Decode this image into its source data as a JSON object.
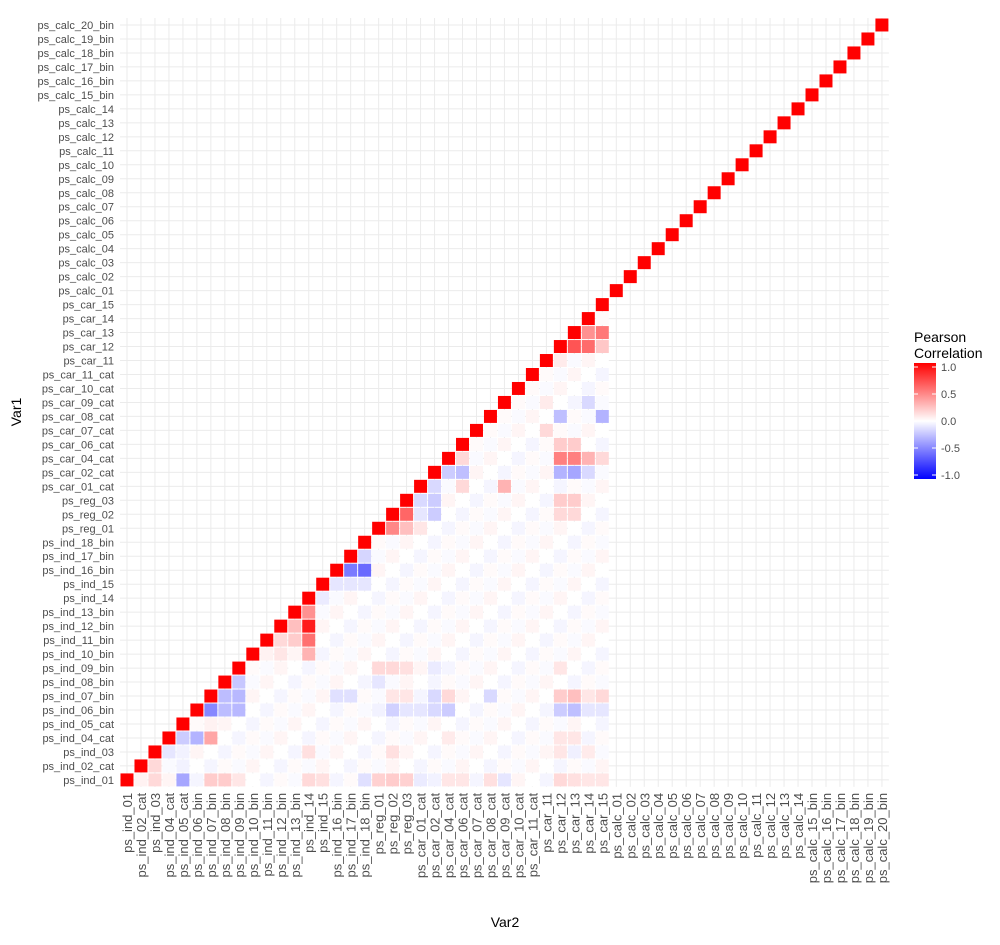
{
  "chart_data": {
    "type": "heatmap",
    "xlabel": "Var2",
    "ylabel": "Var1",
    "variables": [
      "ps_ind_01",
      "ps_ind_02_cat",
      "ps_ind_03",
      "ps_ind_04_cat",
      "ps_ind_05_cat",
      "ps_ind_06_bin",
      "ps_ind_07_bin",
      "ps_ind_08_bin",
      "ps_ind_09_bin",
      "ps_ind_10_bin",
      "ps_ind_11_bin",
      "ps_ind_12_bin",
      "ps_ind_13_bin",
      "ps_ind_14",
      "ps_ind_15",
      "ps_ind_16_bin",
      "ps_ind_17_bin",
      "ps_ind_18_bin",
      "ps_reg_01",
      "ps_reg_02",
      "ps_reg_03",
      "ps_car_01_cat",
      "ps_car_02_cat",
      "ps_car_04_cat",
      "ps_car_06_cat",
      "ps_car_07_cat",
      "ps_car_08_cat",
      "ps_car_09_cat",
      "ps_car_10_cat",
      "ps_car_11_cat",
      "ps_car_11",
      "ps_car_12",
      "ps_car_13",
      "ps_car_14",
      "ps_car_15",
      "ps_calc_01",
      "ps_calc_02",
      "ps_calc_03",
      "ps_calc_04",
      "ps_calc_05",
      "ps_calc_06",
      "ps_calc_07",
      "ps_calc_08",
      "ps_calc_09",
      "ps_calc_10",
      "ps_calc_11",
      "ps_calc_12",
      "ps_calc_13",
      "ps_calc_14",
      "ps_calc_15_bin",
      "ps_calc_16_bin",
      "ps_calc_17_bin",
      "ps_calc_18_bin",
      "ps_calc_19_bin",
      "ps_calc_20_bin"
    ],
    "diagonal": 1.0,
    "correlations": [
      [
        "ps_ind_01",
        "ps_ind_02_cat",
        0.05
      ],
      [
        "ps_ind_01",
        "ps_ind_03",
        0.15
      ],
      [
        "ps_ind_01",
        "ps_ind_05_cat",
        -0.35
      ],
      [
        "ps_ind_01",
        "ps_ind_07_bin",
        0.2
      ],
      [
        "ps_ind_01",
        "ps_ind_08_bin",
        0.2
      ],
      [
        "ps_ind_01",
        "ps_ind_09_bin",
        0.1
      ],
      [
        "ps_ind_01",
        "ps_ind_14",
        0.15
      ],
      [
        "ps_ind_01",
        "ps_ind_15",
        0.12
      ],
      [
        "ps_ind_01",
        "ps_ind_18_bin",
        -0.12
      ],
      [
        "ps_ind_01",
        "ps_reg_01",
        0.18
      ],
      [
        "ps_ind_01",
        "ps_reg_02",
        0.2
      ],
      [
        "ps_ind_01",
        "ps_reg_03",
        0.18
      ],
      [
        "ps_ind_01",
        "ps_car_01_cat",
        -0.08
      ],
      [
        "ps_ind_01",
        "ps_car_02_cat",
        -0.05
      ],
      [
        "ps_ind_01",
        "ps_car_04_cat",
        0.1
      ],
      [
        "ps_ind_01",
        "ps_car_06_cat",
        0.1
      ],
      [
        "ps_ind_01",
        "ps_car_08_cat",
        0.12
      ],
      [
        "ps_ind_01",
        "ps_car_09_cat",
        -0.1
      ],
      [
        "ps_ind_01",
        "ps_car_12",
        0.15
      ],
      [
        "ps_ind_01",
        "ps_car_13",
        0.12
      ],
      [
        "ps_ind_01",
        "ps_car_14",
        0.1
      ],
      [
        "ps_ind_01",
        "ps_car_15",
        0.1
      ],
      [
        "ps_ind_02_cat",
        "ps_ind_03",
        0.15
      ],
      [
        "ps_ind_02_cat",
        "ps_ind_05_cat",
        -0.05
      ],
      [
        "ps_ind_03",
        "ps_ind_04_cat",
        -0.1
      ],
      [
        "ps_ind_03",
        "ps_ind_05_cat",
        -0.05
      ],
      [
        "ps_ind_03",
        "ps_ind_14",
        0.12
      ],
      [
        "ps_ind_03",
        "ps_reg_02",
        0.12
      ],
      [
        "ps_ind_03",
        "ps_car_12",
        0.1
      ],
      [
        "ps_ind_03",
        "ps_car_13",
        -0.06
      ],
      [
        "ps_ind_03",
        "ps_car_14",
        0.08
      ],
      [
        "ps_ind_04_cat",
        "ps_ind_05_cat",
        -0.2
      ],
      [
        "ps_ind_04_cat",
        "ps_ind_06_bin",
        -0.3
      ],
      [
        "ps_ind_04_cat",
        "ps_ind_07_bin",
        0.35
      ],
      [
        "ps_ind_04_cat",
        "ps_car_04_cat",
        0.08
      ],
      [
        "ps_ind_04_cat",
        "ps_car_12",
        0.1
      ],
      [
        "ps_ind_04_cat",
        "ps_car_13",
        0.1
      ],
      [
        "ps_ind_05_cat",
        "ps_ind_07_bin",
        0.05
      ],
      [
        "ps_ind_06_bin",
        "ps_ind_07_bin",
        -0.47
      ],
      [
        "ps_ind_06_bin",
        "ps_ind_08_bin",
        -0.26
      ],
      [
        "ps_ind_06_bin",
        "ps_ind_09_bin",
        -0.28
      ],
      [
        "ps_ind_06_bin",
        "ps_reg_01",
        -0.05
      ],
      [
        "ps_ind_06_bin",
        "ps_reg_02",
        -0.18
      ],
      [
        "ps_ind_06_bin",
        "ps_reg_03",
        -0.1
      ],
      [
        "ps_ind_06_bin",
        "ps_car_01_cat",
        -0.1
      ],
      [
        "ps_ind_06_bin",
        "ps_car_02_cat",
        -0.15
      ],
      [
        "ps_ind_06_bin",
        "ps_car_04_cat",
        -0.2
      ],
      [
        "ps_ind_06_bin",
        "ps_car_12",
        -0.2
      ],
      [
        "ps_ind_06_bin",
        "ps_car_13",
        -0.25
      ],
      [
        "ps_ind_06_bin",
        "ps_car_14",
        -0.1
      ],
      [
        "ps_ind_06_bin",
        "ps_car_15",
        -0.1
      ],
      [
        "ps_ind_07_bin",
        "ps_ind_08_bin",
        -0.26
      ],
      [
        "ps_ind_07_bin",
        "ps_ind_09_bin",
        -0.28
      ],
      [
        "ps_ind_07_bin",
        "ps_ind_16_bin",
        -0.12
      ],
      [
        "ps_ind_07_bin",
        "ps_ind_17_bin",
        -0.12
      ],
      [
        "ps_ind_07_bin",
        "ps_reg_02",
        0.1
      ],
      [
        "ps_ind_07_bin",
        "ps_reg_03",
        0.1
      ],
      [
        "ps_ind_07_bin",
        "ps_car_02_cat",
        -0.15
      ],
      [
        "ps_ind_07_bin",
        "ps_car_04_cat",
        0.15
      ],
      [
        "ps_ind_07_bin",
        "ps_car_08_cat",
        -0.15
      ],
      [
        "ps_ind_07_bin",
        "ps_car_12",
        0.2
      ],
      [
        "ps_ind_07_bin",
        "ps_car_13",
        0.25
      ],
      [
        "ps_ind_07_bin",
        "ps_car_14",
        0.1
      ],
      [
        "ps_ind_07_bin",
        "ps_car_15",
        0.15
      ],
      [
        "ps_ind_08_bin",
        "ps_ind_09_bin",
        -0.22
      ],
      [
        "ps_ind_08_bin",
        "ps_reg_01",
        -0.1
      ],
      [
        "ps_ind_09_bin",
        "ps_reg_01",
        0.15
      ],
      [
        "ps_ind_09_bin",
        "ps_reg_02",
        0.15
      ],
      [
        "ps_ind_09_bin",
        "ps_reg_03",
        0.12
      ],
      [
        "ps_ind_09_bin",
        "ps_car_02_cat",
        -0.08
      ],
      [
        "ps_ind_09_bin",
        "ps_car_12",
        0.1
      ],
      [
        "ps_ind_10_bin",
        "ps_ind_11_bin",
        0.05
      ],
      [
        "ps_ind_10_bin",
        "ps_ind_12_bin",
        0.1
      ],
      [
        "ps_ind_10_bin",
        "ps_ind_14",
        0.3
      ],
      [
        "ps_ind_11_bin",
        "ps_ind_12_bin",
        0.15
      ],
      [
        "ps_ind_11_bin",
        "ps_ind_13_bin",
        0.2
      ],
      [
        "ps_ind_11_bin",
        "ps_ind_14",
        0.56
      ],
      [
        "ps_ind_12_bin",
        "ps_ind_13_bin",
        0.25
      ],
      [
        "ps_ind_12_bin",
        "ps_ind_14",
        0.89
      ],
      [
        "ps_ind_13_bin",
        "ps_ind_14",
        0.43
      ],
      [
        "ps_ind_14",
        "ps_ind_15",
        -0.08
      ],
      [
        "ps_ind_15",
        "ps_ind_16_bin",
        -0.1
      ],
      [
        "ps_ind_15",
        "ps_ind_17_bin",
        -0.1
      ],
      [
        "ps_ind_15",
        "ps_ind_18_bin",
        -0.1
      ],
      [
        "ps_ind_16_bin",
        "ps_ind_17_bin",
        -0.52
      ],
      [
        "ps_ind_16_bin",
        "ps_ind_18_bin",
        -0.59
      ],
      [
        "ps_ind_17_bin",
        "ps_ind_18_bin",
        -0.16
      ],
      [
        "ps_reg_01",
        "ps_reg_02",
        0.47
      ],
      [
        "ps_reg_01",
        "ps_reg_03",
        0.25
      ],
      [
        "ps_reg_01",
        "ps_car_01_cat",
        0.1
      ],
      [
        "ps_reg_02",
        "ps_reg_03",
        0.6
      ],
      [
        "ps_reg_02",
        "ps_car_01_cat",
        -0.1
      ],
      [
        "ps_reg_02",
        "ps_car_02_cat",
        -0.2
      ],
      [
        "ps_reg_02",
        "ps_car_12",
        0.15
      ],
      [
        "ps_reg_02",
        "ps_car_13",
        0.15
      ],
      [
        "ps_reg_03",
        "ps_car_01_cat",
        -0.15
      ],
      [
        "ps_reg_03",
        "ps_car_02_cat",
        -0.2
      ],
      [
        "ps_reg_03",
        "ps_car_12",
        0.2
      ],
      [
        "ps_reg_03",
        "ps_car_13",
        0.2
      ],
      [
        "ps_car_01_cat",
        "ps_car_02_cat",
        -0.15
      ],
      [
        "ps_car_01_cat",
        "ps_car_06_cat",
        0.15
      ],
      [
        "ps_car_01_cat",
        "ps_car_09_cat",
        0.3
      ],
      [
        "ps_car_02_cat",
        "ps_car_04_cat",
        -0.2
      ],
      [
        "ps_car_02_cat",
        "ps_car_06_cat",
        -0.25
      ],
      [
        "ps_car_02_cat",
        "ps_car_12",
        -0.3
      ],
      [
        "ps_car_02_cat",
        "ps_car_13",
        -0.35
      ],
      [
        "ps_car_02_cat",
        "ps_car_14",
        -0.15
      ],
      [
        "ps_car_04_cat",
        "ps_car_06_cat",
        0.15
      ],
      [
        "ps_car_04_cat",
        "ps_car_12",
        0.5
      ],
      [
        "ps_car_04_cat",
        "ps_car_13",
        0.5
      ],
      [
        "ps_car_04_cat",
        "ps_car_14",
        0.3
      ],
      [
        "ps_car_04_cat",
        "ps_car_15",
        0.15
      ],
      [
        "ps_car_06_cat",
        "ps_car_12",
        0.2
      ],
      [
        "ps_car_06_cat",
        "ps_car_13",
        0.2
      ],
      [
        "ps_car_07_cat",
        "ps_car_11",
        0.15
      ],
      [
        "ps_car_08_cat",
        "ps_car_12",
        -0.25
      ],
      [
        "ps_car_08_cat",
        "ps_car_15",
        -0.3
      ],
      [
        "ps_car_09_cat",
        "ps_car_11",
        0.08
      ],
      [
        "ps_car_09_cat",
        "ps_car_14",
        -0.15
      ],
      [
        "ps_car_11",
        "ps_car_12",
        0.08
      ],
      [
        "ps_car_12",
        "ps_car_13",
        0.67
      ],
      [
        "ps_car_12",
        "ps_car_14",
        0.58
      ],
      [
        "ps_car_12",
        "ps_car_15",
        0.22
      ],
      [
        "ps_car_13",
        "ps_car_14",
        0.43
      ],
      [
        "ps_car_13",
        "ps_car_15",
        0.53
      ]
    ],
    "color_scale": {
      "low": "#0000ff",
      "mid": "#ffffff",
      "high": "#ff0000",
      "limits": [
        -1,
        1
      ]
    },
    "legend": {
      "title_lines": [
        "Pearson",
        "Correlation"
      ],
      "breaks": [
        1.0,
        0.5,
        0.0,
        -0.5,
        -1.0
      ],
      "labels": [
        "1.0",
        "0.5",
        "0.0",
        "-0.5",
        "-1.0"
      ],
      "position": "right"
    },
    "grid": true,
    "layout": "upper-triangle"
  }
}
